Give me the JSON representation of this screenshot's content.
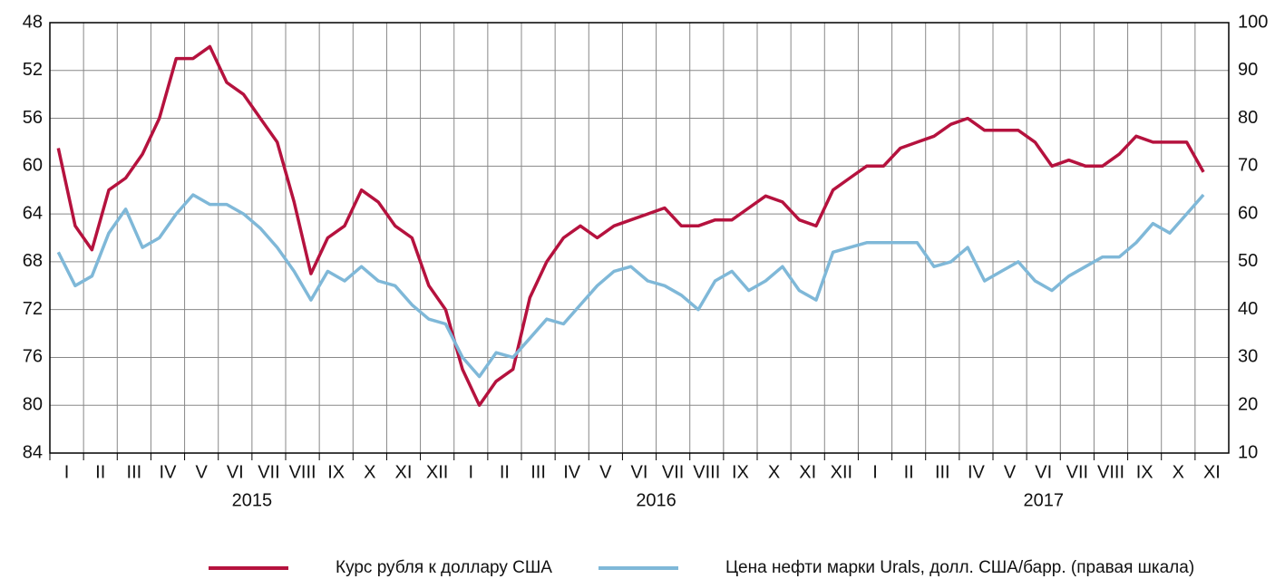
{
  "chart_data": {
    "type": "line",
    "categories": [
      "I",
      null,
      "II",
      null,
      "III",
      null,
      "IV",
      null,
      "V",
      null,
      "VI",
      null,
      "VII",
      null,
      "VIII",
      null,
      "IX",
      null,
      "X",
      null,
      "XI",
      null,
      "XII",
      null,
      "I",
      null,
      "II",
      null,
      "III",
      null,
      "IV",
      null,
      "V",
      null,
      "VI",
      null,
      "VII",
      null,
      "VIII",
      null,
      "IX",
      null,
      "X",
      null,
      "XI",
      null,
      "XII",
      null,
      "I",
      null,
      "II",
      null,
      "III",
      null,
      "IV",
      null,
      "V",
      null,
      "VI",
      null,
      "VII",
      null,
      "VIII",
      null,
      "IX",
      null,
      "X",
      null,
      "XI"
    ],
    "years": [
      "2015",
      "2016",
      "2017"
    ],
    "series": [
      {
        "name": "Курс рубля к доллару США",
        "color": "#b5123e",
        "axis": "y",
        "values": [
          58.5,
          65,
          67,
          62,
          61,
          59,
          56,
          51,
          51,
          50,
          53,
          54,
          56,
          58,
          63,
          69,
          66,
          65,
          62,
          63,
          65,
          66,
          70,
          72,
          77,
          80,
          78,
          77,
          71,
          68,
          66,
          65,
          66,
          65,
          64.5,
          64,
          63.5,
          65,
          65,
          64.5,
          64.5,
          63.5,
          62.5,
          63,
          64.5,
          65,
          62,
          61,
          60,
          60,
          58.5,
          58,
          57.5,
          56.5,
          56,
          57,
          57,
          57,
          58,
          60,
          59.5,
          60,
          60,
          59,
          57.5,
          58,
          58,
          58,
          60.5
        ]
      },
      {
        "name": "Цена нефти марки Urals, долл. США/барр. (правая шкала)",
        "color": "#7fb8d8",
        "axis": "y2",
        "values": [
          52,
          45,
          47,
          56,
          61,
          53,
          55,
          60,
          64,
          62,
          62,
          60,
          57,
          53,
          48,
          42,
          48,
          46,
          49,
          46,
          45,
          41,
          38,
          37,
          30,
          26,
          31,
          30,
          34,
          38,
          37,
          41,
          45,
          48,
          49,
          46,
          45,
          43,
          40,
          46,
          48,
          44,
          46,
          49,
          44,
          42,
          52,
          53,
          54,
          54,
          54,
          54,
          49,
          50,
          53,
          46,
          48,
          50,
          46,
          44,
          47,
          49,
          51,
          51,
          54,
          58,
          56,
          60,
          64
        ]
      }
    ],
    "ylim": [
      48,
      84
    ],
    "yreverse": true,
    "yticks": [
      48,
      52,
      56,
      60,
      64,
      68,
      72,
      76,
      80,
      84
    ],
    "y2lim": [
      10,
      100
    ],
    "y2ticks": [
      10,
      20,
      30,
      40,
      50,
      60,
      70,
      80,
      90,
      100
    ],
    "grid": true
  }
}
